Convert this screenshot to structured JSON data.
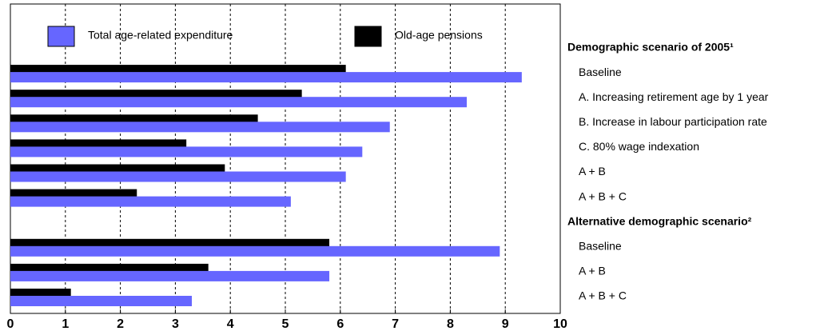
{
  "chart_data": {
    "type": "bar",
    "orientation": "horizontal",
    "categories": [
      "Demographic scenario of 2005¹",
      "Baseline",
      "A. Increasing retirement age by 1 year",
      "B. Increase in labour participation rate",
      "C. 80% wage indexation",
      "A + B",
      "A + B + C",
      "Alternative demographic scenario²",
      "Baseline",
      "A + B",
      "A + B + C"
    ],
    "series": [
      {
        "name": "Old-age pensions",
        "color": "#000000",
        "values": [
          null,
          6.1,
          5.3,
          4.5,
          3.2,
          3.9,
          2.3,
          null,
          5.8,
          3.6,
          1.1
        ]
      },
      {
        "name": "Total age-related expenditure",
        "color": "#6666ff",
        "values": [
          null,
          9.3,
          8.3,
          6.9,
          6.4,
          6.1,
          5.1,
          null,
          8.9,
          5.8,
          3.3
        ]
      }
    ],
    "xlim": [
      0,
      10
    ],
    "xticks": [
      0,
      1,
      2,
      3,
      4,
      5,
      6,
      7,
      8,
      9,
      10
    ],
    "grid": true
  }
}
